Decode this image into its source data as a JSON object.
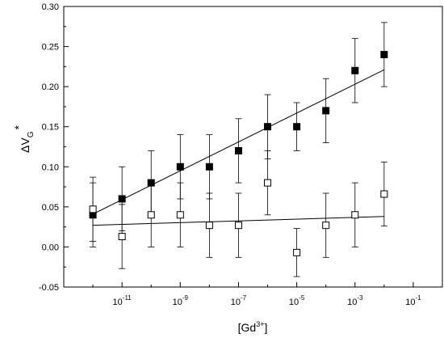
{
  "chart_data": {
    "type": "scatter",
    "xscale": "log",
    "xlim": [
      1e-13,
      1
    ],
    "ylim": [
      -0.05,
      0.3
    ],
    "grid": false,
    "legend": "none",
    "xlabel": {
      "main": "[Gd",
      "sup": "3+",
      "close": "]"
    },
    "ylabel": {
      "delta": "Δ",
      "main": "V",
      "sub": "G",
      "sup": "*"
    },
    "yticks": [
      "-0.05",
      "0.00",
      "0.05",
      "0.10",
      "0.15",
      "0.20",
      "0.25",
      "0.30"
    ],
    "xticks": [
      {
        "value": 1e-11,
        "base": "10",
        "exp": "-11"
      },
      {
        "value": 1e-09,
        "base": "10",
        "exp": "-9"
      },
      {
        "value": 1e-07,
        "base": "10",
        "exp": "-7"
      },
      {
        "value": 1e-05,
        "base": "10",
        "exp": "-5"
      },
      {
        "value": 0.001,
        "base": "10",
        "exp": "-3"
      },
      {
        "value": 0.1,
        "base": "10",
        "exp": "-1"
      }
    ],
    "series": [
      {
        "marker": "filled-square",
        "color": "#000000",
        "x": [
          1e-12,
          1e-11,
          1e-10,
          1e-09,
          1e-08,
          1e-07,
          1e-06,
          1e-05,
          0.0001,
          0.001,
          0.01
        ],
        "y": [
          0.04,
          0.06,
          0.08,
          0.1,
          0.1,
          0.12,
          0.15,
          0.15,
          0.17,
          0.22,
          0.24
        ],
        "err": [
          0.04,
          0.04,
          0.04,
          0.04,
          0.04,
          0.04,
          0.04,
          0.03,
          0.04,
          0.04,
          0.04
        ],
        "fit": {
          "x": [
            1e-12,
            0.01
          ],
          "y": [
            0.041,
            0.221
          ]
        }
      },
      {
        "marker": "open-square",
        "color": "#000000",
        "x": [
          1e-12,
          1e-11,
          1e-10,
          1e-09,
          1e-08,
          1e-07,
          1e-06,
          1e-05,
          0.0001,
          0.001,
          0.01
        ],
        "y": [
          0.047,
          0.013,
          0.04,
          0.04,
          0.027,
          0.027,
          0.08,
          -0.007,
          0.027,
          0.04,
          0.066
        ],
        "err": [
          0.04,
          0.04,
          0.04,
          0.04,
          0.04,
          0.04,
          0.04,
          0.03,
          0.04,
          0.04,
          0.04
        ],
        "fit": {
          "x": [
            1e-12,
            0.01
          ],
          "y": [
            0.027,
            0.038
          ]
        }
      }
    ]
  }
}
